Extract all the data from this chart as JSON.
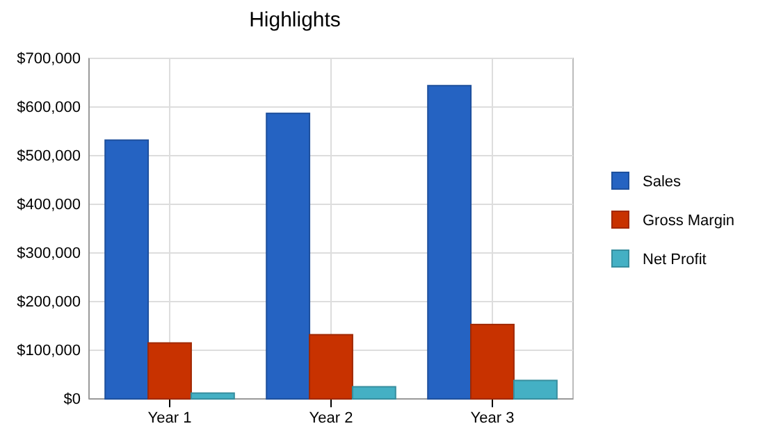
{
  "chart_data": {
    "type": "bar",
    "title": "Highlights",
    "categories": [
      "Year 1",
      "Year 2",
      "Year 3"
    ],
    "series": [
      {
        "name": "Sales",
        "color": "#2563c2",
        "values": [
          532000,
          587000,
          644000
        ]
      },
      {
        "name": "Gross Margin",
        "color": "#c83200",
        "values": [
          115000,
          132000,
          153000
        ]
      },
      {
        "name": "Net Profit",
        "color": "#44b0c4",
        "values": [
          12000,
          25000,
          38000
        ]
      }
    ],
    "ylim": [
      0,
      700000
    ],
    "yticks": [
      {
        "value": 0,
        "label": "$0"
      },
      {
        "value": 100000,
        "label": "$100,000"
      },
      {
        "value": 200000,
        "label": "$200,000"
      },
      {
        "value": 300000,
        "label": "$300,000"
      },
      {
        "value": 400000,
        "label": "$400,000"
      },
      {
        "value": 500000,
        "label": "$500,000"
      },
      {
        "value": 600000,
        "label": "$600,000"
      },
      {
        "value": 700000,
        "label": "$700,000"
      }
    ],
    "grid": true,
    "legend": "right"
  }
}
